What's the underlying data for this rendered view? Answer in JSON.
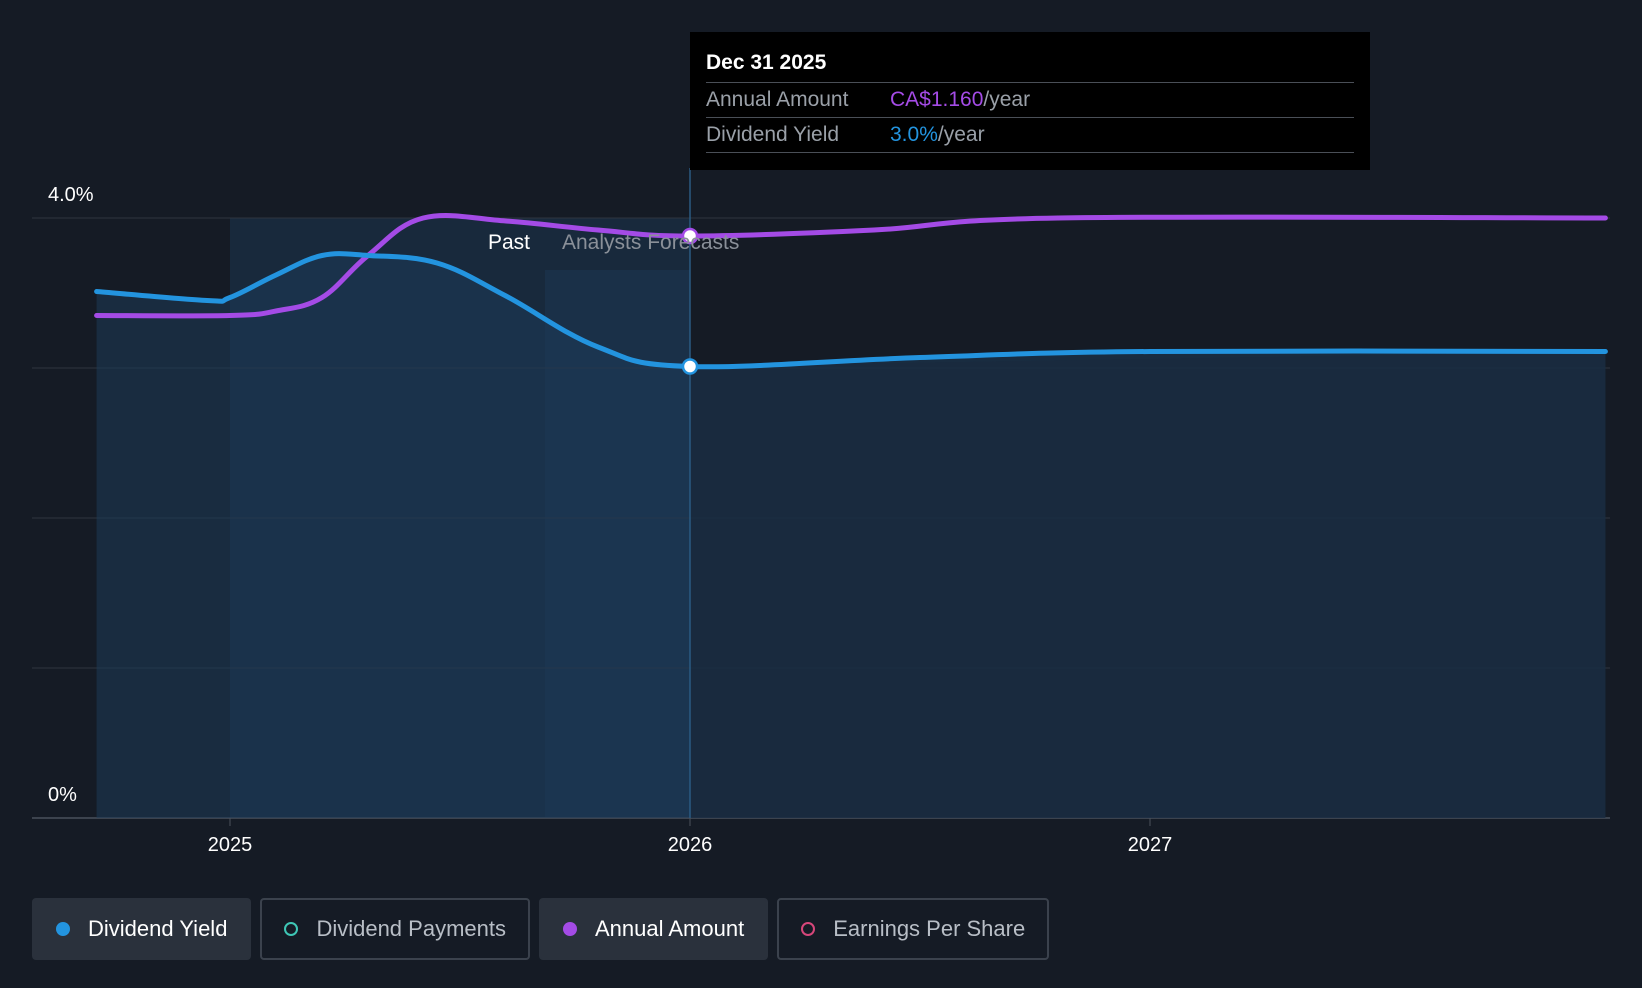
{
  "chart_data": {
    "type": "line",
    "y_axis": {
      "top_label": "4.0%",
      "bottom_label": "0%",
      "ylim": [
        0,
        4.0
      ]
    },
    "x_ticks": [
      "2025",
      "2026",
      "2027"
    ],
    "regions": {
      "past_label": "Past",
      "forecast_label": "Analysts Forecasts"
    },
    "series": [
      {
        "name": "Dividend Yield",
        "color": "#2394df",
        "points": [
          [
            2024.71,
            3.51
          ],
          [
            2024.95,
            3.45
          ],
          [
            2025.0,
            3.47
          ],
          [
            2025.1,
            3.62
          ],
          [
            2025.2,
            3.75
          ],
          [
            2025.3,
            3.75
          ],
          [
            2025.45,
            3.7
          ],
          [
            2025.6,
            3.48
          ],
          [
            2025.8,
            3.14
          ],
          [
            2026.0,
            3.01
          ],
          [
            2026.5,
            3.07
          ],
          [
            2027.0,
            3.11
          ],
          [
            2027.99,
            3.11
          ]
        ]
      },
      {
        "name": "Annual Amount",
        "color": "#a44be6",
        "points": [
          [
            2024.71,
            3.35
          ],
          [
            2025.0,
            3.35
          ],
          [
            2025.1,
            3.38
          ],
          [
            2025.2,
            3.47
          ],
          [
            2025.3,
            3.75
          ],
          [
            2025.42,
            4.0
          ],
          [
            2025.6,
            3.98
          ],
          [
            2025.8,
            3.92
          ],
          [
            2026.0,
            3.88
          ],
          [
            2026.4,
            3.92
          ],
          [
            2026.8,
            4.0
          ],
          [
            2027.99,
            4.0
          ]
        ]
      }
    ],
    "highlight": {
      "x": 2026.0,
      "yield": 3.01,
      "annual": 3.88
    }
  },
  "tooltip": {
    "date": "Dec 31 2025",
    "annual_label": "Annual Amount",
    "annual_value": "CA$1.160",
    "annual_unit": "/year",
    "yield_label": "Dividend Yield",
    "yield_value": "3.0%",
    "yield_unit": "/year"
  },
  "legend": [
    {
      "label": "Dividend Yield",
      "color": "#2394df",
      "style": "filled",
      "active": true
    },
    {
      "label": "Dividend Payments",
      "color": "#3ec6b5",
      "style": "hollow",
      "active": false
    },
    {
      "label": "Annual Amount",
      "color": "#a44be6",
      "style": "filled",
      "active": true
    },
    {
      "label": "Earnings Per Share",
      "color": "#d6467a",
      "style": "hollow",
      "active": false
    }
  ],
  "colors": {
    "background": "#151b25",
    "yield": "#2394df",
    "annual": "#a44be6",
    "grid": "#2e3540"
  }
}
